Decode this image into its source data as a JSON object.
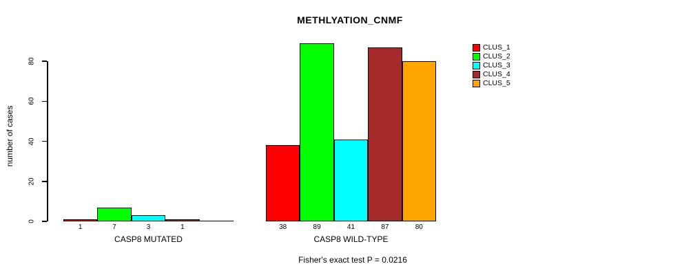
{
  "chart_data": {
    "type": "bar",
    "title": "METHLYATION_CNMF",
    "ylabel": "number of cases",
    "ylim": [
      0,
      89
    ],
    "yticks": [
      0,
      20,
      40,
      60,
      80
    ],
    "grid": false,
    "note": "Fisher's exact test P = 0.0216",
    "series_colors": [
      "#FF0000",
      "#00FF00",
      "#00FFFF",
      "#A52A2A",
      "#FFA500"
    ],
    "legend": {
      "position": "right",
      "entries": [
        {
          "label": "CLUS_1",
          "color": "#FF0000"
        },
        {
          "label": "CLUS_2",
          "color": "#00FF00"
        },
        {
          "label": "CLUS_3",
          "color": "#00FFFF"
        },
        {
          "label": "CLUS_4",
          "color": "#A52A2A"
        },
        {
          "label": "CLUS_5",
          "color": "#FFA500"
        }
      ]
    },
    "groups": [
      {
        "label": "CASP8 MUTATED",
        "values": [
          1,
          7,
          3,
          1,
          0
        ],
        "value_labels": [
          "1",
          "7",
          "3",
          "1",
          ""
        ]
      },
      {
        "label": "CASP8 WILD-TYPE",
        "values": [
          38,
          89,
          41,
          87,
          80
        ],
        "value_labels": [
          "38",
          "89",
          "41",
          "87",
          "80"
        ]
      }
    ]
  }
}
